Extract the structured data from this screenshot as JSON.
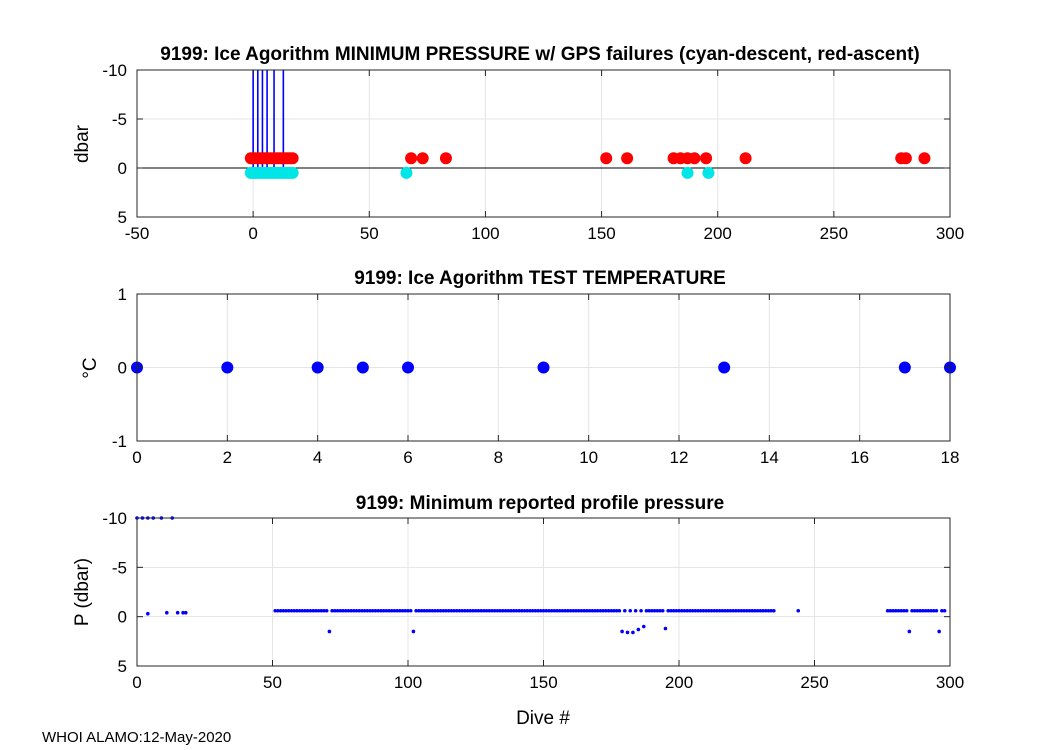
{
  "footer": "WHOI ALAMO:12-May-2020",
  "chart_data": [
    {
      "type": "scatter",
      "title": "9199: Ice Agorithm MINIMUM PRESSURE w/ GPS failures (cyan-descent, red-ascent)",
      "xlabel": "",
      "ylabel": "dbar",
      "xlim": [
        -50,
        300
      ],
      "ylim": [
        -10,
        5
      ],
      "y_reversed": true,
      "x_ticks": [
        -50,
        0,
        50,
        100,
        150,
        200,
        250,
        300
      ],
      "y_ticks": [
        -10,
        -5,
        0,
        5
      ],
      "grid": true,
      "zero_line": true,
      "colors": {
        "descent": "#00e5e5",
        "ascent": "#ff0000",
        "gps_failure": "#0000ff"
      },
      "gps_failure_dives": [
        0,
        2,
        4,
        6,
        9,
        13
      ],
      "series": [
        {
          "name": "descent",
          "color": "#00e5e5",
          "x": [
            -1,
            0,
            1,
            2,
            3,
            4,
            5,
            6,
            7,
            8,
            9,
            10,
            11,
            12,
            13,
            14,
            15,
            16,
            17,
            66,
            187,
            196
          ],
          "y": [
            0.5,
            0.5,
            0.5,
            0.5,
            0.5,
            0.5,
            0.5,
            0.5,
            0.5,
            0.5,
            0.5,
            0.5,
            0.5,
            0.5,
            0.5,
            0.5,
            0.5,
            0.5,
            0.5,
            0.5,
            0.5,
            0.5
          ]
        },
        {
          "name": "ascent",
          "color": "#ff0000",
          "x": [
            -1,
            0,
            1,
            2,
            3,
            4,
            5,
            6,
            7,
            8,
            9,
            10,
            11,
            12,
            13,
            14,
            15,
            16,
            17,
            68,
            73,
            83,
            152,
            161,
            181,
            184,
            187,
            190,
            195,
            212,
            279,
            281,
            289
          ],
          "y": [
            -1,
            -1,
            -1,
            -1,
            -1,
            -1,
            -1,
            -1,
            -1,
            -1,
            -1,
            -1,
            -1,
            -1,
            -1,
            -1,
            -1,
            -1,
            -1,
            -1,
            -1,
            -1,
            -1,
            -1,
            -1,
            -1,
            -1,
            -1,
            -1,
            -1,
            -1,
            -1,
            -1
          ]
        }
      ]
    },
    {
      "type": "scatter",
      "title": "9199: Ice Agorithm TEST TEMPERATURE",
      "xlabel": "",
      "ylabel": "°C",
      "xlim": [
        0,
        18
      ],
      "ylim": [
        -1,
        1
      ],
      "x_ticks": [
        0,
        2,
        4,
        6,
        8,
        10,
        12,
        14,
        16,
        18
      ],
      "y_ticks": [
        -1,
        0,
        1
      ],
      "grid": true,
      "series": [
        {
          "name": "test temperature",
          "color": "#0000ff",
          "x": [
            0,
            2,
            4,
            5,
            6,
            9,
            13,
            17,
            18
          ],
          "y": [
            0,
            0,
            0,
            0,
            0,
            0,
            0,
            0,
            0
          ]
        }
      ]
    },
    {
      "type": "scatter",
      "title": "9199: Minimum reported profile pressure",
      "xlabel": "Dive #",
      "ylabel": "P (dbar)",
      "xlim": [
        0,
        300
      ],
      "ylim": [
        -10,
        5
      ],
      "y_reversed": true,
      "x_ticks": [
        0,
        50,
        100,
        150,
        200,
        250,
        300
      ],
      "y_ticks": [
        -10,
        -5,
        0,
        5
      ],
      "grid": true,
      "series": [
        {
          "name": "minimum pressure",
          "color": "#0000ff",
          "x": [
            0,
            2,
            4,
            6,
            9,
            13,
            4,
            11,
            15,
            17,
            18
          ],
          "y": [
            -10,
            -10,
            -10,
            -10,
            -10,
            -10,
            -0.3,
            -0.4,
            -0.4,
            -0.4,
            -0.4
          ],
          "segments": [
            {
              "x_start": 51,
              "x_end": 235,
              "step": 1,
              "y": -0.6,
              "outliers": [
                [
                  71,
                  1.5
                ],
                [
                  102,
                  1.5
                ],
                [
                  179,
                  1.5
                ],
                [
                  181,
                  1.6
                ],
                [
                  183,
                  1.6
                ],
                [
                  185,
                  1.3
                ],
                [
                  187,
                  1.0
                ],
                [
                  195,
                  1.2
                ]
              ]
            },
            {
              "x_start": 277,
              "x_end": 298,
              "step": 1,
              "y": -0.6,
              "outliers": [
                [
                  285,
                  1.5
                ],
                [
                  296,
                  1.5
                ]
              ]
            }
          ],
          "extra_x": [
            244
          ],
          "extra_y": [
            -0.6
          ]
        }
      ]
    }
  ]
}
